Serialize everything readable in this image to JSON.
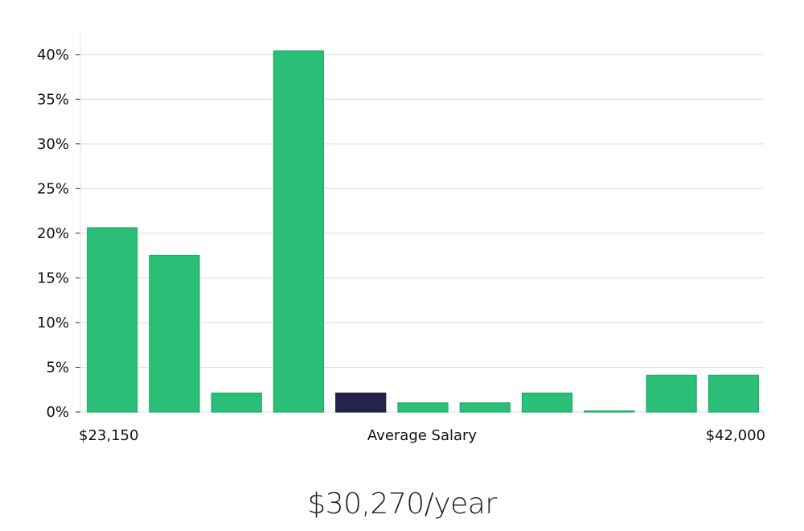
{
  "chart_data": {
    "type": "bar",
    "title": "",
    "xlabel": "Average Salary",
    "ylabel": "",
    "x_min_label": "$23,150",
    "x_max_label": "$42,000",
    "ylim": [
      0,
      42.5
    ],
    "yticks": [
      0,
      5,
      10,
      15,
      20,
      25,
      30,
      35,
      40
    ],
    "ytick_labels": [
      "0%",
      "5%",
      "10%",
      "15%",
      "20%",
      "25%",
      "30%",
      "35%",
      "40%"
    ],
    "grid": true,
    "values": [
      20.6,
      17.5,
      2.1,
      40.4,
      2.1,
      1.0,
      1.0,
      2.1,
      0.05,
      4.1,
      4.1
    ],
    "highlight_index": 4,
    "bar_color": "#2bbf77",
    "bar_edge_color": "#22b06b",
    "highlight_color": "#26234a",
    "grid_color": "#dcdcdc"
  },
  "summary": {
    "salary_text": "$30,270/year"
  }
}
